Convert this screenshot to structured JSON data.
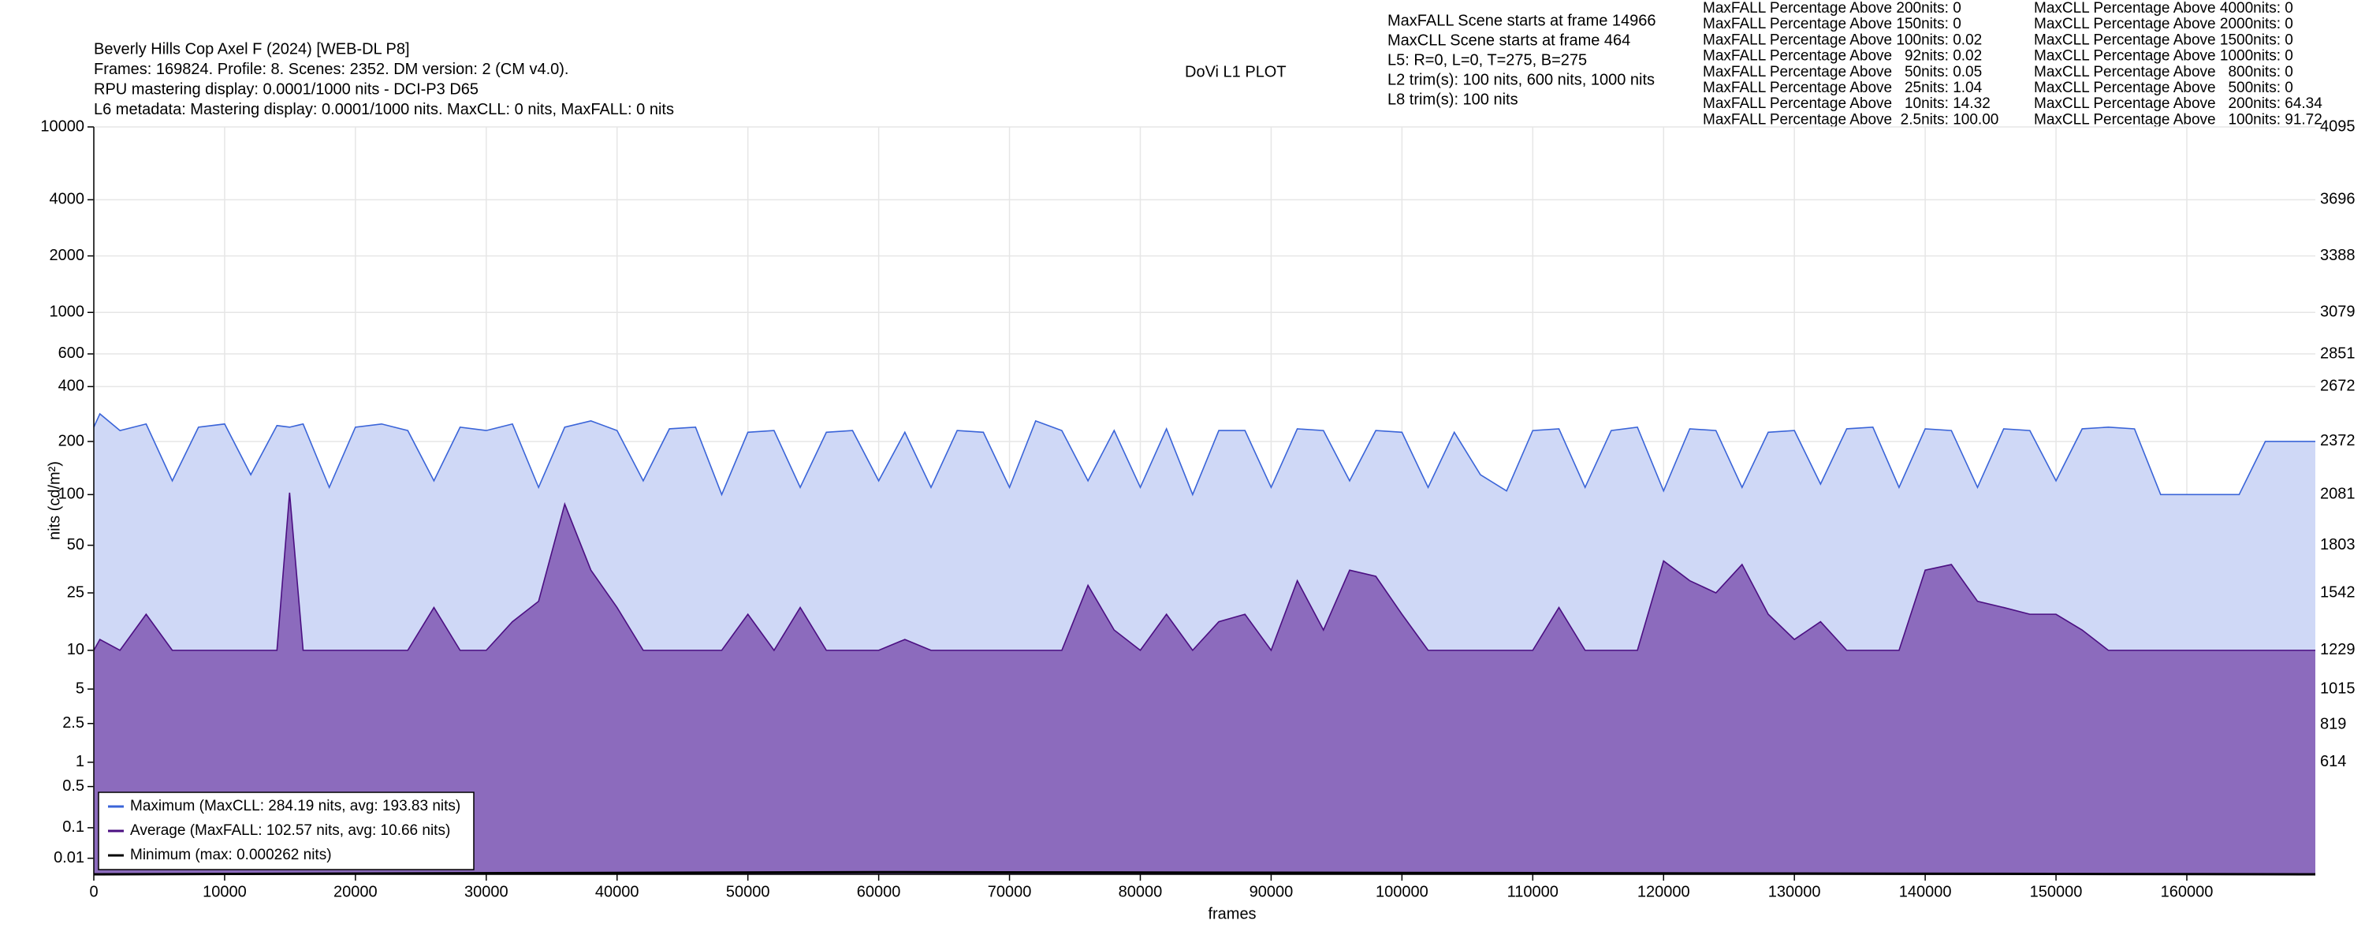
{
  "chart_data": {
    "type": "area_line",
    "title": "DoVi L1 PLOT",
    "header_left": [
      "Beverly Hills Cop Axel F (2024) [WEB-DL P8]",
      "Frames: 169824. Profile: 8. Scenes: 2352. DM version: 2 (CM v4.0).",
      "RPU mastering display: 0.0001/1000 nits - DCI-P3 D65",
      "L6 metadata: Mastering display: 0.0001/1000 nits. MaxCLL: 0 nits, MaxFALL: 0 nits"
    ],
    "info": [
      "MaxFALL Scene starts at frame 14966",
      "MaxCLL Scene starts at frame 464",
      "L5: R=0, L=0, T=275, B=275",
      "L2 trim(s): 100 nits, 600 nits, 1000 nits",
      "L8 trim(s): 100 nits"
    ],
    "maxfall_stats": [
      "MaxFALL Percentage Above 200nits: 0",
      "MaxFALL Percentage Above 150nits: 0",
      "MaxFALL Percentage Above 100nits: 0.02",
      "MaxFALL Percentage Above   92nits: 0.02",
      "MaxFALL Percentage Above   50nits: 0.05",
      "MaxFALL Percentage Above   25nits: 1.04",
      "MaxFALL Percentage Above   10nits: 14.32",
      "MaxFALL Percentage Above  2.5nits: 100.00"
    ],
    "maxcll_stats": [
      "MaxCLL Percentage Above 4000nits: 0",
      "MaxCLL Percentage Above 2000nits: 0",
      "MaxCLL Percentage Above 1500nits: 0",
      "MaxCLL Percentage Above 1000nits: 0",
      "MaxCLL Percentage Above   800nits: 0",
      "MaxCLL Percentage Above   500nits: 0",
      "MaxCLL Percentage Above   200nits: 64.34",
      "MaxCLL Percentage Above   100nits: 91.72"
    ],
    "x_label": "frames",
    "y_label": "nits (cd/m²)",
    "y_scale": "pq",
    "grid": true,
    "legend": "lower left",
    "xlim": [
      0,
      169824
    ],
    "xticks": [
      0,
      10000,
      20000,
      30000,
      40000,
      50000,
      60000,
      70000,
      80000,
      90000,
      100000,
      110000,
      120000,
      130000,
      140000,
      150000,
      160000
    ],
    "ylim": [
      0,
      10000
    ],
    "yticks": [
      0.01,
      0.1,
      0.5,
      1,
      2.5,
      5,
      10,
      25,
      50,
      100,
      200,
      400,
      600,
      1000,
      2000,
      4000,
      10000
    ],
    "y2lim": [
      0,
      4095
    ],
    "y2ticks": [
      614,
      819,
      1015,
      1229,
      1542,
      1803,
      2081,
      2372,
      2672,
      2851,
      3079,
      3388,
      3696,
      4095
    ],
    "x": [
      0,
      464,
      2000,
      4000,
      6000,
      8000,
      10000,
      12000,
      14000,
      14966,
      16000,
      18000,
      20000,
      22000,
      24000,
      26000,
      28000,
      30000,
      32000,
      34000,
      36000,
      38000,
      40000,
      42000,
      44000,
      46000,
      48000,
      50000,
      52000,
      54000,
      56000,
      58000,
      60000,
      62000,
      64000,
      66000,
      68000,
      70000,
      72000,
      74000,
      76000,
      78000,
      80000,
      82000,
      84000,
      86000,
      88000,
      90000,
      92000,
      94000,
      96000,
      98000,
      100000,
      102000,
      104000,
      106000,
      108000,
      110000,
      112000,
      114000,
      116000,
      118000,
      120000,
      122000,
      124000,
      126000,
      128000,
      130000,
      132000,
      134000,
      136000,
      138000,
      140000,
      142000,
      144000,
      146000,
      148000,
      150000,
      152000,
      154000,
      156000,
      158000,
      160000,
      162000,
      164000,
      166000,
      168000,
      169824
    ],
    "series": [
      {
        "name": "Maximum (MaxCLL: 284.19 nits, avg: 193.83 nits)",
        "color": "#3a64d8",
        "fill": "#cfd8f6",
        "values": [
          240,
          284.19,
          230,
          250,
          120,
          240,
          250,
          130,
          245,
          240,
          250,
          110,
          240,
          250,
          230,
          120,
          240,
          230,
          250,
          110,
          240,
          260,
          230,
          120,
          235,
          240,
          100,
          225,
          230,
          110,
          225,
          230,
          120,
          225,
          110,
          230,
          225,
          110,
          260,
          230,
          120,
          230,
          110,
          235,
          100,
          230,
          230,
          110,
          235,
          230,
          120,
          230,
          225,
          110,
          225,
          130,
          105,
          230,
          235,
          110,
          230,
          240,
          105,
          235,
          230,
          110,
          225,
          230,
          115,
          235,
          240,
          110,
          235,
          230,
          110,
          235,
          230,
          120,
          235,
          240,
          235,
          100,
          100,
          100,
          100,
          200,
          200,
          200
        ]
      },
      {
        "name": "Average (MaxFALL: 102.57 nits, avg: 10.66 nits)",
        "color": "#4b0f82",
        "fill": "#8c6bbd",
        "values": [
          10,
          12,
          10,
          18,
          10,
          10,
          10,
          10,
          10,
          102.57,
          10,
          10,
          10,
          10,
          10,
          20,
          10,
          10,
          16,
          22,
          88,
          35,
          20,
          10,
          10,
          10,
          10,
          18,
          10,
          20,
          10,
          10,
          10,
          12,
          10,
          10,
          10,
          10,
          10,
          10,
          28,
          14,
          10,
          18,
          10,
          16,
          18,
          10,
          30,
          14,
          35,
          32,
          18,
          10,
          10,
          10,
          10,
          10,
          20,
          10,
          10,
          10,
          40,
          30,
          25,
          38,
          18,
          12,
          16,
          10,
          10,
          10,
          35,
          38,
          22,
          20,
          18,
          18,
          14,
          10,
          10,
          10,
          10,
          10,
          10,
          10,
          10,
          10
        ]
      },
      {
        "name": "Minimum (max: 0.000262 nits)",
        "color": "#000000",
        "x": [
          0,
          60000,
          169824
        ],
        "values": [
          0,
          0.000262,
          0
        ]
      }
    ]
  }
}
